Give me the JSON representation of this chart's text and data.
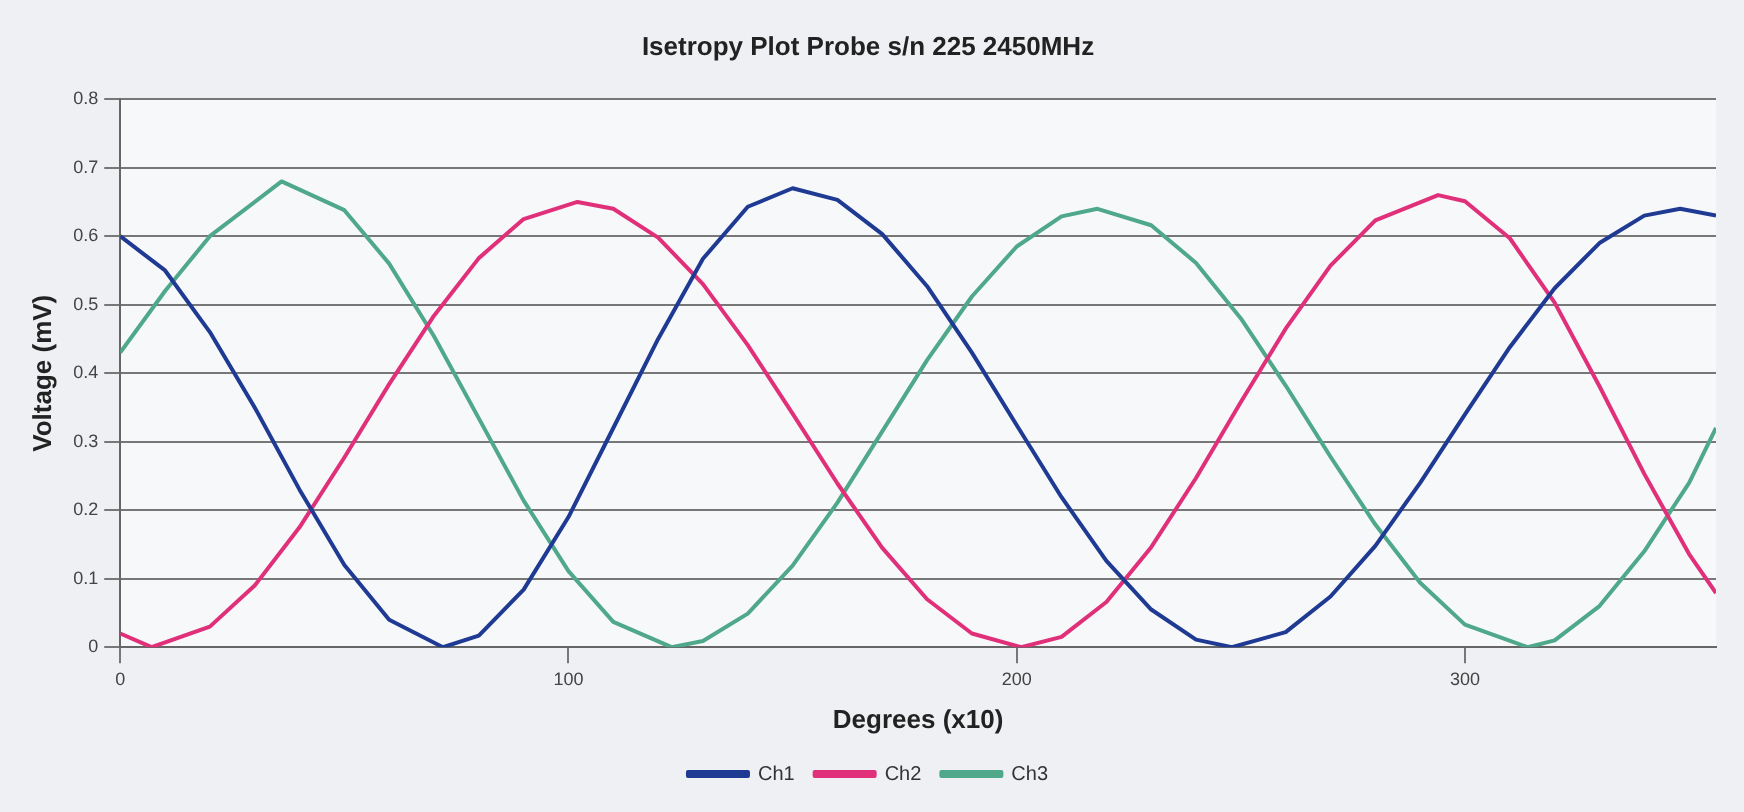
{
  "chart_data": {
    "type": "line",
    "title": "Isetropy Plot Probe s/n 225 2450MHz",
    "xlabel": "Degrees (x10)",
    "ylabel": "Voltage (mV)",
    "xlim": [
      0,
      356
    ],
    "xticks": [
      0,
      100,
      200,
      300
    ],
    "ylim": [
      0,
      0.8
    ],
    "yticks": [
      0,
      0.1,
      0.2,
      0.3,
      0.4,
      0.5,
      0.6,
      0.7,
      0.8
    ],
    "grid": "y",
    "legend": "bottom",
    "marker": "none",
    "line_style": "solid",
    "series": [
      {
        "name": "Ch1",
        "color": "#1f3a93",
        "x": [
          0,
          10,
          20,
          30,
          40,
          50,
          60,
          72,
          80,
          90,
          100,
          110,
          120,
          130,
          140,
          150,
          160,
          170,
          180,
          190,
          200,
          210,
          220,
          230,
          240,
          248,
          260,
          270,
          280,
          290,
          300,
          310,
          320,
          330,
          340,
          348,
          356
        ],
        "values": [
          0.6,
          0.55,
          0.46,
          0.35,
          0.23,
          0.12,
          0.04,
          0,
          0.017,
          0.084,
          0.19,
          0.32,
          0.45,
          0.567,
          0.643,
          0.67,
          0.653,
          0.603,
          0.527,
          0.43,
          0.324,
          0.219,
          0.126,
          0.055,
          0.011,
          0,
          0.022,
          0.074,
          0.148,
          0.24,
          0.34,
          0.438,
          0.524,
          0.59,
          0.63,
          0.64,
          0.63
        ]
      },
      {
        "name": "Ch2",
        "color": "#e0307a",
        "x": [
          0,
          7,
          20,
          30,
          40,
          50,
          60,
          70,
          80,
          90,
          102,
          110,
          120,
          130,
          140,
          150,
          160,
          170,
          180,
          190,
          201,
          210,
          220,
          230,
          240,
          250,
          260,
          270,
          280,
          294,
          300,
          310,
          320,
          330,
          340,
          350,
          356
        ],
        "values": [
          0.02,
          0,
          0.03,
          0.09,
          0.175,
          0.277,
          0.384,
          0.484,
          0.568,
          0.625,
          0.65,
          0.64,
          0.598,
          0.53,
          0.441,
          0.341,
          0.239,
          0.145,
          0.07,
          0.02,
          0,
          0.015,
          0.066,
          0.146,
          0.247,
          0.358,
          0.465,
          0.557,
          0.623,
          0.66,
          0.651,
          0.597,
          0.503,
          0.381,
          0.253,
          0.136,
          0.079
        ]
      },
      {
        "name": "Ch3",
        "color": "#4fa88a",
        "x": [
          0,
          10,
          20,
          36,
          50,
          60,
          70,
          80,
          90,
          100,
          110,
          123,
          130,
          140,
          150,
          160,
          170,
          180,
          190,
          200,
          210,
          218,
          230,
          240,
          250,
          260,
          270,
          280,
          290,
          300,
          314,
          320,
          330,
          340,
          350,
          356
        ],
        "values": [
          0.43,
          0.52,
          0.6,
          0.68,
          0.638,
          0.56,
          0.454,
          0.334,
          0.214,
          0.111,
          0.037,
          0,
          0.009,
          0.049,
          0.119,
          0.211,
          0.315,
          0.419,
          0.512,
          0.585,
          0.629,
          0.64,
          0.616,
          0.561,
          0.48,
          0.382,
          0.278,
          0.179,
          0.094,
          0.033,
          0,
          0.01,
          0.06,
          0.14,
          0.24,
          0.32
        ]
      }
    ]
  }
}
